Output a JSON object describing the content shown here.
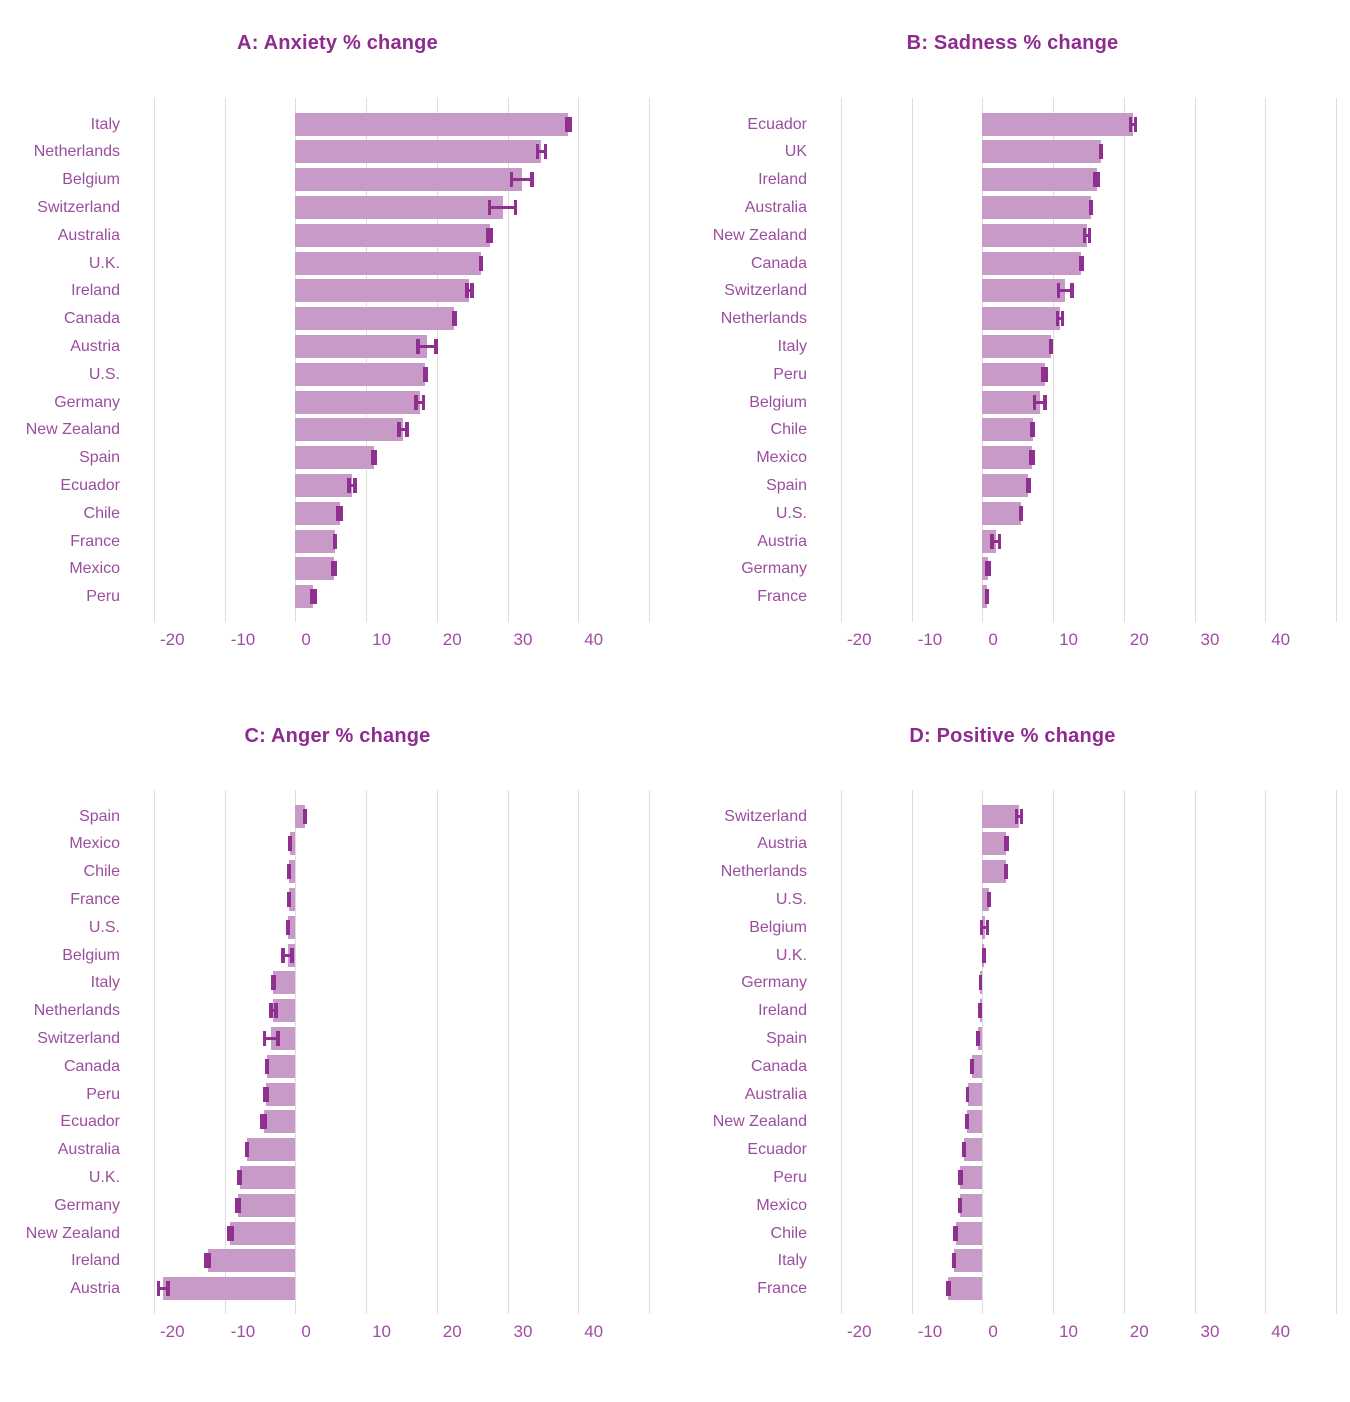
{
  "colors": {
    "bar_fill": "#C79AC8",
    "error_bar": "#8F3090",
    "title_text": "#8E2B8F",
    "category_text": "#9B4D9E",
    "tick_text": "#A04CA2",
    "gridline": "#DCDCDC",
    "background": "#FFFFFF"
  },
  "chart_data": [
    {
      "panel_label": "A",
      "title": "A: Anxiety % change",
      "type": "bar",
      "orientation": "horizontal",
      "unit": "% change",
      "xlim": [
        -20,
        50
      ],
      "xticks": [
        -20,
        -10,
        0,
        10,
        20,
        30,
        40
      ],
      "grid": "vertical",
      "error_bars": true,
      "legend": "none",
      "categories": [
        "Italy",
        "Netherlands",
        "Belgium",
        "Switzerland",
        "Australia",
        "U.K.",
        "Ireland",
        "Canada",
        "Austria",
        "U.S.",
        "Germany",
        "New Zealand",
        "Spain",
        "Ecuador",
        "Chile",
        "France",
        "Mexico",
        "Peru"
      ],
      "values": [
        38.6,
        34.8,
        32.0,
        29.3,
        27.5,
        26.3,
        24.6,
        22.5,
        18.6,
        18.4,
        17.6,
        15.2,
        11.1,
        8.0,
        6.3,
        5.6,
        5.5,
        2.5
      ],
      "errors": [
        0.5,
        0.8,
        1.7,
        2.1,
        0.5,
        0.3,
        0.6,
        0.4,
        1.5,
        0.3,
        0.8,
        0.8,
        0.4,
        0.7,
        0.5,
        0.3,
        0.4,
        0.5
      ]
    },
    {
      "panel_label": "B",
      "title": "B: Sadness % change",
      "type": "bar",
      "orientation": "horizontal",
      "unit": "% change",
      "xlim": [
        -20,
        50
      ],
      "xticks": [
        -20,
        -10,
        0,
        10,
        20,
        30,
        40
      ],
      "grid": "vertical",
      "error_bars": true,
      "legend": "none",
      "categories": [
        "Ecuador",
        "UK",
        "Ireland",
        "Australia",
        "New Zealand",
        "Canada",
        "Switzerland",
        "Netherlands",
        "Italy",
        "Peru",
        "Belgium",
        "Chile",
        "Mexico",
        "Spain",
        "U.S.",
        "Austria",
        "Germany",
        "France"
      ],
      "values": [
        21.3,
        16.8,
        16.2,
        15.4,
        14.8,
        14.0,
        11.7,
        11.0,
        9.7,
        8.8,
        8.1,
        7.1,
        7.0,
        6.5,
        5.5,
        1.9,
        0.8,
        0.7
      ],
      "errors": [
        0.6,
        0.3,
        0.5,
        0.3,
        0.6,
        0.3,
        1.2,
        0.6,
        0.3,
        0.5,
        1.0,
        0.4,
        0.4,
        0.4,
        0.3,
        0.8,
        0.4,
        0.3
      ]
    },
    {
      "panel_label": "C",
      "title": "C: Anger % change",
      "type": "bar",
      "orientation": "horizontal",
      "unit": "% change",
      "xlim": [
        -20,
        50
      ],
      "xticks": [
        -20,
        -10,
        0,
        10,
        20,
        30,
        40
      ],
      "grid": "vertical",
      "error_bars": true,
      "legend": "none",
      "categories": [
        "Spain",
        "Mexico",
        "Chile",
        "France",
        "U.S.",
        "Belgium",
        "Italy",
        "Netherlands",
        "Switzerland",
        "Canada",
        "Peru",
        "Ecuador",
        "Australia",
        "U.K.",
        "Germany",
        "New Zealand",
        "Ireland",
        "Austria"
      ],
      "values": [
        1.4,
        -0.8,
        -0.9,
        -0.9,
        -1.1,
        -1.1,
        -3.1,
        -3.1,
        -3.4,
        -4.0,
        -4.2,
        -4.5,
        -6.8,
        -7.9,
        -8.1,
        -9.2,
        -12.4,
        -18.7
      ],
      "errors": [
        0.3,
        0.2,
        0.25,
        0.25,
        0.3,
        0.9,
        0.4,
        0.6,
        1.2,
        0.25,
        0.4,
        0.5,
        0.3,
        0.3,
        0.4,
        0.5,
        0.5,
        0.9
      ]
    },
    {
      "panel_label": "D",
      "title": "D: Positive % change",
      "type": "bar",
      "orientation": "horizontal",
      "unit": "% change",
      "xlim": [
        -20,
        50
      ],
      "xticks": [
        -20,
        -10,
        0,
        10,
        20,
        30,
        40
      ],
      "grid": "vertical",
      "error_bars": true,
      "legend": "none",
      "categories": [
        "Switzerland",
        "Austria",
        "Netherlands",
        "U.S.",
        "Belgium",
        "U.K.",
        "Germany",
        "Ireland",
        "Spain",
        "Canada",
        "Australia",
        "New Zealand",
        "Ecuador",
        "Peru",
        "Mexico",
        "Chile",
        "Italy",
        "France"
      ],
      "values": [
        5.2,
        3.4,
        3.3,
        0.9,
        0.3,
        0.2,
        -0.3,
        -0.4,
        -0.6,
        -1.5,
        -2.1,
        -2.2,
        -2.6,
        -3.1,
        -3.2,
        -3.8,
        -4.0,
        -4.8
      ],
      "errors": [
        0.6,
        0.4,
        0.3,
        0.3,
        0.7,
        0.2,
        0.2,
        0.2,
        0.25,
        0.2,
        0.25,
        0.3,
        0.3,
        0.3,
        0.3,
        0.35,
        0.3,
        0.35
      ]
    }
  ]
}
